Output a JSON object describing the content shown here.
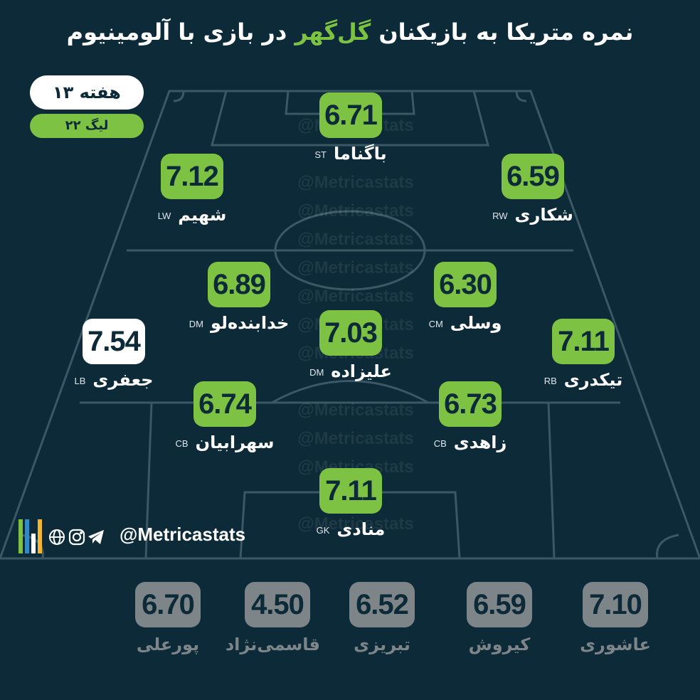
{
  "title": {
    "before": "نمره متریکا به بازیکنان",
    "highlight": "گل‌گهر",
    "after": "در بازی با آلومینیوم"
  },
  "week_badge": "هفته ۱۳",
  "league_badge": "لیگ ۲۲",
  "watermark": "@Metricastats",
  "brand": {
    "handle": "@Metricastats",
    "icons": [
      "globe-icon",
      "instagram-icon",
      "telegram-icon"
    ]
  },
  "colors": {
    "background": "#0c2a37",
    "accent": "#7dc243",
    "best": "#ffffff",
    "sub": "#7e8589"
  },
  "players": [
    {
      "id": "st",
      "score": "6.71",
      "name": "باگناما",
      "pos": "ST"
    },
    {
      "id": "lw",
      "score": "7.12",
      "name": "شهیم",
      "pos": "LW"
    },
    {
      "id": "rw",
      "score": "6.59",
      "name": "شکاری",
      "pos": "RW"
    },
    {
      "id": "dm1",
      "score": "6.89",
      "name": "خدابنده‌لو",
      "pos": "DM"
    },
    {
      "id": "cm",
      "score": "6.30",
      "name": "وسلی",
      "pos": "CM"
    },
    {
      "id": "lb",
      "score": "7.54",
      "name": "جعفری",
      "pos": "LB",
      "best": true
    },
    {
      "id": "dm2",
      "score": "7.03",
      "name": "علیزاده",
      "pos": "DM"
    },
    {
      "id": "rb",
      "score": "7.11",
      "name": "تیکدری",
      "pos": "RB"
    },
    {
      "id": "cb1",
      "score": "6.74",
      "name": "سهرابیان",
      "pos": "CB"
    },
    {
      "id": "cb2",
      "score": "6.73",
      "name": "زاهدی",
      "pos": "CB"
    },
    {
      "id": "gk",
      "score": "7.11",
      "name": "منادی",
      "pos": "GK"
    }
  ],
  "substitutes": [
    {
      "score": "6.70",
      "name": "پورعلی"
    },
    {
      "score": "4.50",
      "name": "قاسمی‌نژاد"
    },
    {
      "score": "6.52",
      "name": "تبریزی"
    },
    {
      "score": "6.59",
      "name": "کیروش"
    },
    {
      "score": "7.10",
      "name": "عاشوری"
    }
  ]
}
